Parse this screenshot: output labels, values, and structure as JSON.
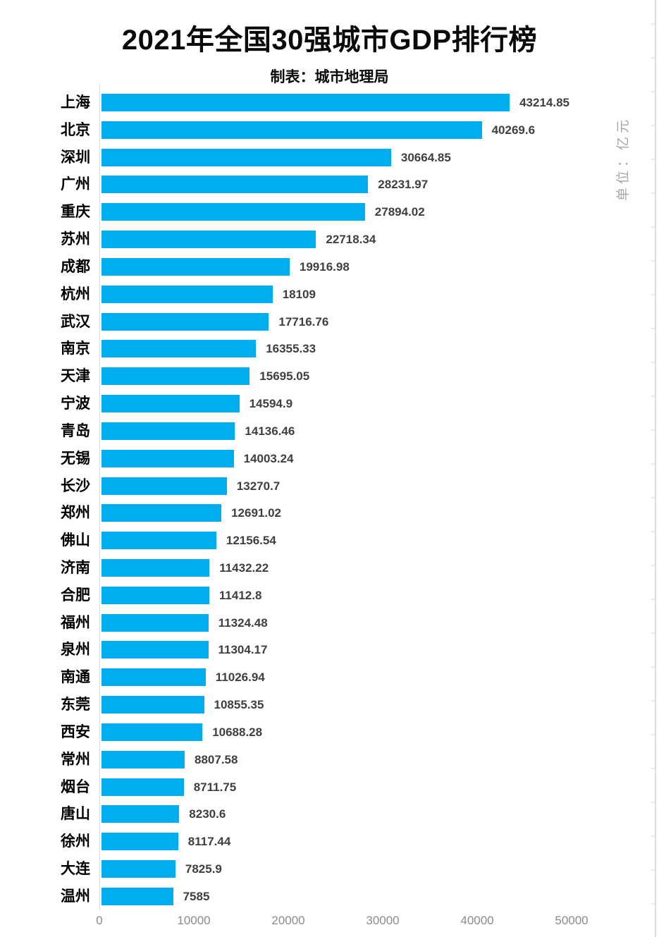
{
  "chart": {
    "title": "2021年全国30强城市GDP排行榜",
    "subtitle": "制表：城市地理局",
    "unit_label": "单位：亿元"
  },
  "chart_data": {
    "type": "bar",
    "orientation": "horizontal",
    "title": "2021年全国30强城市GDP排行榜",
    "subtitle": "制表：城市地理局",
    "unit": "亿元",
    "categories": [
      "上海",
      "北京",
      "深圳",
      "广州",
      "重庆",
      "苏州",
      "成都",
      "杭州",
      "武汉",
      "南京",
      "天津",
      "宁波",
      "青岛",
      "无锡",
      "长沙",
      "郑州",
      "佛山",
      "济南",
      "合肥",
      "福州",
      "泉州",
      "南通",
      "东莞",
      "西安",
      "常州",
      "烟台",
      "唐山",
      "徐州",
      "大连",
      "温州"
    ],
    "values": [
      43214.85,
      40269.6,
      30664.85,
      28231.97,
      27894.02,
      22718.34,
      19916.98,
      18109,
      17716.76,
      16355.33,
      15695.05,
      14594.9,
      14136.46,
      14003.24,
      13270.7,
      12691.02,
      12156.54,
      11432.22,
      11412.8,
      11324.48,
      11304.17,
      11026.94,
      10855.35,
      10688.28,
      8807.58,
      8711.75,
      8230.6,
      8117.44,
      7825.9,
      7585
    ],
    "value_labels": [
      "43214.85",
      "40269.6",
      "30664.85",
      "28231.97",
      "27894.02",
      "22718.34",
      "19916.98",
      "18109",
      "17716.76",
      "16355.33",
      "15695.05",
      "14594.9",
      "14136.46",
      "14003.24",
      "13270.7",
      "12691.02",
      "12156.54",
      "11432.22",
      "11412.8",
      "11324.48",
      "11304.17",
      "11026.94",
      "10855.35",
      "10688.28",
      "8807.58",
      "8711.75",
      "8230.6",
      "8117.44",
      "7825.9",
      "7585"
    ],
    "x_ticks": [
      0,
      10000,
      20000,
      30000,
      40000,
      50000
    ],
    "x_tick_labels": [
      "0",
      "10000",
      "20000",
      "30000",
      "40000",
      "50000"
    ],
    "xlim": [
      0,
      50000
    ],
    "grid": false,
    "legend": false,
    "bar_color": "#00AEEF",
    "value_label_position": "end-of-bar"
  },
  "colors": {
    "bar": "#00AEEF",
    "city_label": "#000000",
    "value_label": "#3F3F3F",
    "axis_label": "#8C8C8C",
    "unit_label": "#A8A8A8",
    "axis_line": "#D9D9D9",
    "background": "#FFFFFF"
  }
}
